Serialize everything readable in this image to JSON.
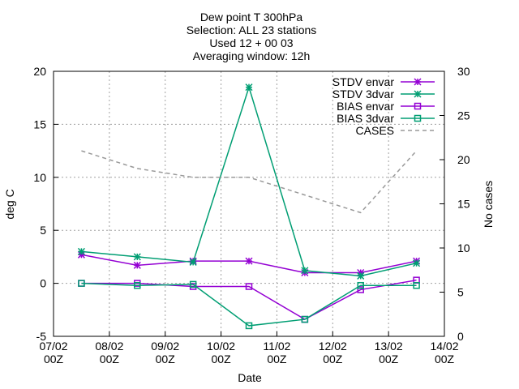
{
  "chart_data": {
    "type": "line",
    "title_lines": [
      "Dew point T 300hPa",
      "Selection: ALL      23 stations",
      "Used 12 + 00 03",
      "Averaging window: 12h"
    ],
    "xlabel": "Date",
    "ylabel": "deg C",
    "y2label": "No cases",
    "x_ticks": [
      {
        "x": 0,
        "line1": "07/02",
        "line2": "00Z"
      },
      {
        "x": 1,
        "line1": "08/02",
        "line2": "00Z"
      },
      {
        "x": 2,
        "line1": "09/02",
        "line2": "00Z"
      },
      {
        "x": 3,
        "line1": "10/02",
        "line2": "00Z"
      },
      {
        "x": 4,
        "line1": "11/02",
        "line2": "00Z"
      },
      {
        "x": 5,
        "line1": "12/02",
        "line2": "00Z"
      },
      {
        "x": 6,
        "line1": "13/02",
        "line2": "00Z"
      },
      {
        "x": 7,
        "line1": "14/02",
        "line2": "00Z"
      }
    ],
    "x": [
      0.5,
      1.5,
      2.5,
      3.5,
      4.5,
      5.5,
      6.5
    ],
    "xlim": [
      0,
      7
    ],
    "ylim": [
      -5,
      20
    ],
    "y_ticks": [
      "-5",
      "0",
      "5",
      "10",
      "15",
      "20"
    ],
    "y2lim": [
      0,
      30
    ],
    "y2_ticks": [
      "0",
      "5",
      "10",
      "15",
      "20",
      "25",
      "30"
    ],
    "grid": true,
    "legend_position": "top-right",
    "series": [
      {
        "name": "STDV envar",
        "color": "#9400d3",
        "marker": "star",
        "dash": false,
        "axis": "y",
        "values": [
          2.7,
          1.7,
          2.1,
          2.1,
          1.0,
          1.0,
          2.1
        ]
      },
      {
        "name": "STDV 3dvar",
        "color": "#009e73",
        "marker": "star",
        "dash": false,
        "axis": "y",
        "values": [
          3.0,
          2.5,
          2.0,
          18.5,
          1.2,
          0.7,
          1.9
        ]
      },
      {
        "name": "BIAS envar",
        "color": "#9400d3",
        "marker": "square",
        "dash": false,
        "axis": "y",
        "values": [
          0.0,
          0.0,
          -0.3,
          -0.3,
          -3.4,
          -0.6,
          0.3
        ]
      },
      {
        "name": "BIAS 3dvar",
        "color": "#009e73",
        "marker": "square",
        "dash": false,
        "axis": "y",
        "values": [
          0.0,
          -0.2,
          -0.1,
          -4.0,
          -3.4,
          -0.2,
          -0.2
        ]
      },
      {
        "name": "CASES",
        "color": "#999999",
        "marker": "none",
        "dash": true,
        "axis": "y2",
        "values": [
          21,
          19,
          18,
          18,
          16,
          14,
          21
        ]
      }
    ]
  }
}
